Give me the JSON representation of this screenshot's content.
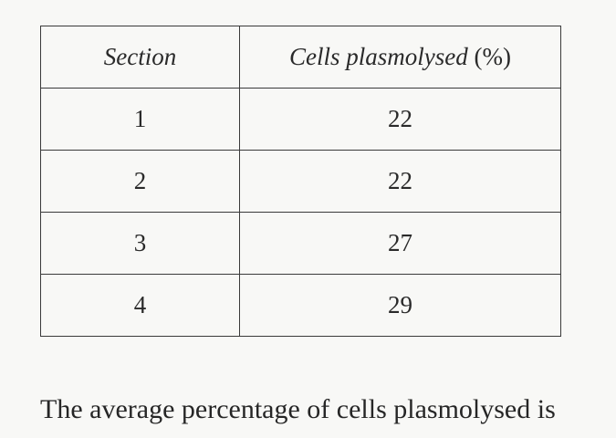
{
  "table": {
    "headers": {
      "section": "Section",
      "cells_plasmolysed": "Cells plasmolysed",
      "unit": "(%)"
    },
    "rows": [
      {
        "section": "1",
        "cells_plasmolysed": "22"
      },
      {
        "section": "2",
        "cells_plasmolysed": "22"
      },
      {
        "section": "3",
        "cells_plasmolysed": "27"
      },
      {
        "section": "4",
        "cells_plasmolysed": "29"
      }
    ]
  },
  "question": {
    "text": "The average percentage of cells plasmolysed is"
  }
}
